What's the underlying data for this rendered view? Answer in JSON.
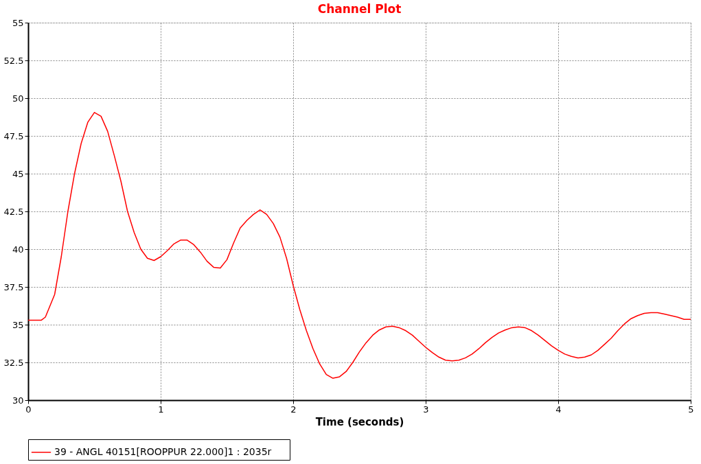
{
  "chart_data": {
    "type": "line",
    "title": "Channel Plot",
    "xlabel": "Time (seconds)",
    "x": [
      0,
      0.1,
      0.13,
      0.2,
      0.25,
      0.3,
      0.35,
      0.4,
      0.45,
      0.5,
      0.55,
      0.6,
      0.65,
      0.7,
      0.75,
      0.8,
      0.85,
      0.9,
      0.95,
      1.0,
      1.05,
      1.1,
      1.15,
      1.2,
      1.25,
      1.3,
      1.35,
      1.4,
      1.45,
      1.5,
      1.55,
      1.6,
      1.65,
      1.7,
      1.75,
      1.8,
      1.85,
      1.9,
      1.95,
      2.0,
      2.05,
      2.1,
      2.15,
      2.2,
      2.25,
      2.3,
      2.35,
      2.4,
      2.45,
      2.5,
      2.55,
      2.6,
      2.65,
      2.7,
      2.75,
      2.8,
      2.85,
      2.9,
      2.95,
      3.0,
      3.05,
      3.1,
      3.15,
      3.2,
      3.25,
      3.3,
      3.35,
      3.4,
      3.45,
      3.5,
      3.55,
      3.6,
      3.65,
      3.7,
      3.75,
      3.8,
      3.85,
      3.9,
      3.95,
      4.0,
      4.05,
      4.1,
      4.15,
      4.2,
      4.25,
      4.3,
      4.35,
      4.4,
      4.45,
      4.5,
      4.55,
      4.6,
      4.65,
      4.7,
      4.75,
      4.8,
      4.85,
      4.9,
      4.95,
      5.0
    ],
    "series": [
      {
        "name": "39 - ANGL 40151[ROOPPUR      22.000]1 : 2035r",
        "color": "#ff0000",
        "values": [
          35.3,
          35.3,
          35.5,
          37,
          39.5,
          42.5,
          45,
          47,
          48.4,
          49.05,
          48.8,
          47.8,
          46.2,
          44.5,
          42.5,
          41.1,
          40,
          39.4,
          39.25,
          39.5,
          39.9,
          40.35,
          40.6,
          40.6,
          40.3,
          39.8,
          39.2,
          38.8,
          38.75,
          39.3,
          40.4,
          41.4,
          41.9,
          42.3,
          42.6,
          42.3,
          41.7,
          40.8,
          39.4,
          37.6,
          36.0,
          34.6,
          33.4,
          32.4,
          31.7,
          31.45,
          31.55,
          31.9,
          32.5,
          33.2,
          33.8,
          34.3,
          34.65,
          34.85,
          34.9,
          34.8,
          34.6,
          34.3,
          33.9,
          33.5,
          33.15,
          32.85,
          32.65,
          32.6,
          32.65,
          32.8,
          33.05,
          33.4,
          33.8,
          34.15,
          34.45,
          34.65,
          34.8,
          34.85,
          34.8,
          34.6,
          34.3,
          33.95,
          33.6,
          33.3,
          33.05,
          32.9,
          32.8,
          32.85,
          33.0,
          33.3,
          33.7,
          34.1,
          34.6,
          35.05,
          35.4,
          35.6,
          35.75,
          35.8,
          35.8,
          35.7,
          35.6,
          35.5,
          35.35,
          35.35
        ]
      }
    ],
    "xlim": [
      0,
      5
    ],
    "xticks": [
      0,
      1,
      2,
      3,
      4,
      5
    ],
    "ylim": [
      30,
      55
    ],
    "yticks": [
      30,
      32.5,
      35,
      37.5,
      40,
      42.5,
      45,
      47.5,
      50,
      52.5,
      55
    ],
    "grid": true,
    "legend": "bottom",
    "marker": "none",
    "line_style": "solid"
  }
}
